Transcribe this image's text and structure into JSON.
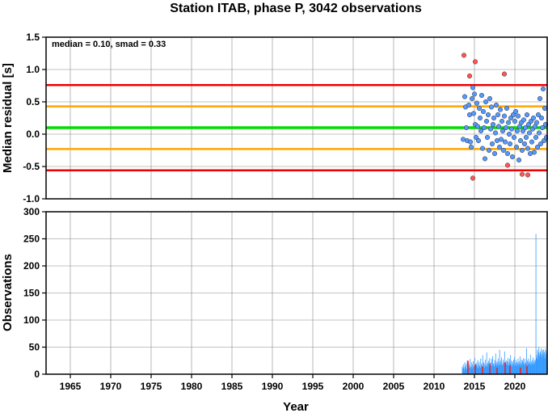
{
  "chart_data": [
    {
      "type": "scatter",
      "title": "Station ITAB, phase P, 3042 observations",
      "annotation": "median = 0.10, smad = 0.33",
      "xlabel": "Year",
      "ylabel": "Median residual [s]",
      "xlim": [
        1962,
        2024
      ],
      "ylim": [
        -1.0,
        1.5
      ],
      "xticks": [
        "1965",
        "1970",
        "1975",
        "1980",
        "1985",
        "1990",
        "1995",
        "2000",
        "2005",
        "2010",
        "2015",
        "2020"
      ],
      "yticks": [
        "1.5",
        "1.0",
        "0.5",
        "0.0",
        "-0.5",
        "-1.0"
      ],
      "grid": true,
      "colors": {
        "median": "#00dd00",
        "inner_band": "#ffa500",
        "outer_band": "#ee0000",
        "point_normal": "#5599ff",
        "point_outlier": "#ff5555"
      },
      "reference_lines": [
        {
          "name": "median",
          "y": 0.1
        },
        {
          "name": "inner_upper",
          "y": 0.43
        },
        {
          "name": "inner_lower",
          "y": -0.23
        },
        {
          "name": "outer_upper",
          "y": 0.76
        },
        {
          "name": "outer_lower",
          "y": -0.56
        }
      ],
      "series": [
        {
          "kind": "normal",
          "points": [
            [
              2013.6,
              -0.08
            ],
            [
              2013.8,
              0.58
            ],
            [
              2013.9,
              0.42
            ],
            [
              2014.0,
              0.1
            ],
            [
              2014.1,
              -0.1
            ],
            [
              2014.3,
              0.45
            ],
            [
              2014.4,
              0.3
            ],
            [
              2014.5,
              -0.12
            ],
            [
              2014.6,
              -0.2
            ],
            [
              2014.7,
              0.55
            ],
            [
              2014.8,
              0.72
            ],
            [
              2014.9,
              0.32
            ],
            [
              2015.0,
              0.62
            ],
            [
              2015.1,
              0.15
            ],
            [
              2015.2,
              -0.05
            ],
            [
              2015.3,
              0.48
            ],
            [
              2015.4,
              0.12
            ],
            [
              2015.5,
              -0.1
            ],
            [
              2015.6,
              0.4
            ],
            [
              2015.7,
              0.25
            ],
            [
              2015.8,
              0.05
            ],
            [
              2015.9,
              0.6
            ],
            [
              2016.0,
              -0.22
            ],
            [
              2016.1,
              0.35
            ],
            [
              2016.2,
              0.1
            ],
            [
              2016.3,
              -0.38
            ],
            [
              2016.4,
              0.5
            ],
            [
              2016.5,
              0.2
            ],
            [
              2016.6,
              -0.05
            ],
            [
              2016.7,
              0.3
            ],
            [
              2016.8,
              -0.25
            ],
            [
              2016.9,
              0.55
            ],
            [
              2017.0,
              0.08
            ],
            [
              2017.1,
              0.42
            ],
            [
              2017.2,
              -0.15
            ],
            [
              2017.3,
              0.15
            ],
            [
              2017.4,
              0.25
            ],
            [
              2017.5,
              -0.3
            ],
            [
              2017.6,
              0.02
            ],
            [
              2017.7,
              0.45
            ],
            [
              2017.8,
              -0.1
            ],
            [
              2017.9,
              0.3
            ],
            [
              2018.0,
              0.12
            ],
            [
              2018.1,
              -0.2
            ],
            [
              2018.2,
              0.38
            ],
            [
              2018.3,
              -0.08
            ],
            [
              2018.4,
              0.2
            ],
            [
              2018.5,
              0.05
            ],
            [
              2018.6,
              -0.25
            ],
            [
              2018.7,
              0.28
            ],
            [
              2018.8,
              -0.12
            ],
            [
              2018.9,
              0.1
            ],
            [
              2019.0,
              0.4
            ],
            [
              2019.1,
              -0.3
            ],
            [
              2019.2,
              0.18
            ],
            [
              2019.3,
              0.0
            ],
            [
              2019.4,
              -0.15
            ],
            [
              2019.5,
              0.25
            ],
            [
              2019.6,
              0.08
            ],
            [
              2019.7,
              -0.35
            ],
            [
              2019.8,
              0.3
            ],
            [
              2019.9,
              -0.05
            ],
            [
              2020.0,
              0.2
            ],
            [
              2020.1,
              0.35
            ],
            [
              2020.2,
              -0.2
            ],
            [
              2020.3,
              0.05
            ],
            [
              2020.4,
              0.28
            ],
            [
              2020.5,
              -0.4
            ],
            [
              2020.6,
              0.12
            ],
            [
              2020.7,
              -0.1
            ],
            [
              2020.8,
              0.18
            ],
            [
              2020.9,
              -0.25
            ],
            [
              2021.0,
              0.05
            ],
            [
              2021.1,
              0.22
            ],
            [
              2021.2,
              -0.15
            ],
            [
              2021.3,
              0.1
            ],
            [
              2021.4,
              -0.05
            ],
            [
              2021.5,
              0.3
            ],
            [
              2021.6,
              -0.22
            ],
            [
              2021.7,
              0.15
            ],
            [
              2021.8,
              0.02
            ],
            [
              2021.9,
              -0.3
            ],
            [
              2022.0,
              0.2
            ],
            [
              2022.1,
              -0.12
            ],
            [
              2022.2,
              0.08
            ],
            [
              2022.3,
              0.25
            ],
            [
              2022.4,
              -0.28
            ],
            [
              2022.5,
              0.12
            ],
            [
              2022.6,
              -0.05
            ],
            [
              2022.7,
              0.18
            ],
            [
              2022.8,
              -0.2
            ],
            [
              2022.9,
              0.3
            ],
            [
              2023.0,
              0.02
            ],
            [
              2023.1,
              0.55
            ],
            [
              2023.2,
              -0.15
            ],
            [
              2023.3,
              0.25
            ],
            [
              2023.4,
              0.1
            ],
            [
              2023.5,
              0.7
            ],
            [
              2023.6,
              -0.1
            ],
            [
              2023.7,
              0.4
            ],
            [
              2023.8,
              0.15
            ],
            [
              2023.9,
              -0.05
            ]
          ]
        },
        {
          "kind": "outlier",
          "points": [
            [
              2013.7,
              1.22
            ],
            [
              2014.4,
              0.9
            ],
            [
              2014.8,
              -0.68
            ],
            [
              2015.1,
              1.12
            ],
            [
              2018.7,
              0.93
            ],
            [
              2019.1,
              -0.48
            ],
            [
              2020.9,
              -0.62
            ],
            [
              2021.6,
              -0.63
            ]
          ]
        }
      ]
    },
    {
      "type": "bar",
      "xlabel": "Year",
      "ylabel": "Observations",
      "xlim": [
        1962,
        2024
      ],
      "ylim": [
        0,
        300
      ],
      "xticks": [
        "1965",
        "1970",
        "1975",
        "1980",
        "1985",
        "1990",
        "1995",
        "2000",
        "2005",
        "2010",
        "2015",
        "2020"
      ],
      "yticks": [
        "300",
        "250",
        "200",
        "150",
        "100",
        "50",
        "0"
      ],
      "grid": true,
      "colors": {
        "normal": "#3399ff",
        "outlier": "#ee2222"
      },
      "bars": {
        "start_year": 2013.5,
        "end_year": 2023.9,
        "values": [
          14,
          10,
          18,
          12,
          8,
          22,
          15,
          11,
          19,
          9,
          25,
          13,
          17,
          20,
          12,
          16,
          28,
          10,
          14,
          22,
          18,
          11,
          24,
          15,
          13,
          30,
          12,
          19,
          16,
          21,
          14,
          26,
          11,
          18,
          23,
          15,
          12,
          29,
          17,
          20,
          13,
          35,
          16,
          22,
          19,
          12,
          27,
          15,
          18,
          40,
          14,
          21,
          17,
          25,
          13,
          30,
          19,
          16,
          22,
          28,
          15,
          33,
          18,
          20,
          14,
          26,
          17,
          38,
          21,
          16,
          24,
          19,
          29,
          15,
          22,
          45,
          18,
          25,
          17,
          31,
          20,
          16,
          27,
          23,
          19,
          42,
          15,
          21,
          26,
          18,
          24,
          17,
          30,
          22,
          16,
          28,
          20,
          35,
          18,
          25,
          14,
          23,
          19,
          27,
          16,
          32,
          21,
          18,
          26,
          15,
          22,
          20,
          29,
          17,
          24,
          19,
          33,
          16,
          21,
          27,
          18,
          25,
          23,
          30,
          17,
          20,
          28,
          22,
          19,
          48,
          16,
          25,
          21,
          29,
          18,
          24,
          20,
          36,
          17,
          22,
          26,
          19,
          31,
          23,
          18,
          27,
          21,
          25,
          259,
          30,
          35,
          45,
          28,
          40,
          50,
          33,
          38,
          42,
          36,
          48,
          31,
          44,
          39,
          46,
          35,
          41,
          30,
          47,
          37,
          43
        ]
      },
      "outlier_bars": [
        [
          2014.2,
          25
        ],
        [
          2015.1,
          18
        ],
        [
          2016.0,
          14
        ],
        [
          2016.9,
          20
        ],
        [
          2017.8,
          12
        ],
        [
          2018.8,
          22
        ],
        [
          2019.4,
          16
        ],
        [
          2020.7,
          12
        ],
        [
          2021.5,
          15
        ]
      ]
    }
  ]
}
